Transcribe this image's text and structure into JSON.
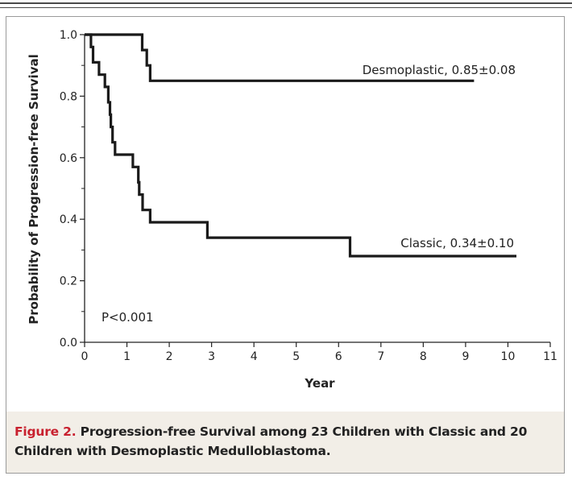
{
  "chart_data": {
    "type": "line",
    "xlabel": "Year",
    "ylabel": "Probability of Progression-free Survival",
    "xlim": [
      0,
      11
    ],
    "ylim": [
      0.0,
      1.0
    ],
    "x_ticks": [
      "0",
      "1",
      "2",
      "3",
      "4",
      "5",
      "6",
      "7",
      "8",
      "9",
      "10",
      "11"
    ],
    "y_ticks": [
      "0.0",
      "0.2",
      "0.4",
      "0.6",
      "0.8",
      "1.0"
    ],
    "series": [
      {
        "name": "Desmoplastic",
        "label": "Desmoplastic, 0.85±0.08",
        "step_points": [
          [
            0,
            1.0
          ],
          [
            1.36,
            1.0
          ],
          [
            1.36,
            0.95
          ],
          [
            1.47,
            0.95
          ],
          [
            1.47,
            0.9
          ],
          [
            1.55,
            0.9
          ],
          [
            1.55,
            0.85
          ],
          [
            9.2,
            0.85
          ]
        ]
      },
      {
        "name": "Classic",
        "label": "Classic, 0.34±0.10",
        "step_points": [
          [
            0,
            1.0
          ],
          [
            0.15,
            1.0
          ],
          [
            0.15,
            0.96
          ],
          [
            0.2,
            0.96
          ],
          [
            0.2,
            0.91
          ],
          [
            0.34,
            0.91
          ],
          [
            0.34,
            0.87
          ],
          [
            0.48,
            0.87
          ],
          [
            0.48,
            0.83
          ],
          [
            0.56,
            0.83
          ],
          [
            0.56,
            0.78
          ],
          [
            0.6,
            0.78
          ],
          [
            0.6,
            0.74
          ],
          [
            0.62,
            0.74
          ],
          [
            0.62,
            0.7
          ],
          [
            0.66,
            0.7
          ],
          [
            0.66,
            0.65
          ],
          [
            0.72,
            0.65
          ],
          [
            0.72,
            0.61
          ],
          [
            1.14,
            0.61
          ],
          [
            1.14,
            0.57
          ],
          [
            1.27,
            0.57
          ],
          [
            1.27,
            0.52
          ],
          [
            1.29,
            0.52
          ],
          [
            1.29,
            0.48
          ],
          [
            1.37,
            0.48
          ],
          [
            1.37,
            0.43
          ],
          [
            1.55,
            0.43
          ],
          [
            1.55,
            0.39
          ],
          [
            2.9,
            0.39
          ],
          [
            2.9,
            0.34
          ],
          [
            6.27,
            0.34
          ],
          [
            6.27,
            0.28
          ],
          [
            10.2,
            0.28
          ]
        ]
      }
    ],
    "annotation": "P<0.001"
  },
  "caption": {
    "label": "Figure 2.",
    "text": "Progression-free Survival among 23 Children with Classic and 20 Children with Desmoplastic Medulloblastoma."
  },
  "colors": {
    "line": "#1a1a1a",
    "caption_label": "#c8202e",
    "caption_background": "#f2eee7",
    "frame_border": "#9a9a9a"
  }
}
